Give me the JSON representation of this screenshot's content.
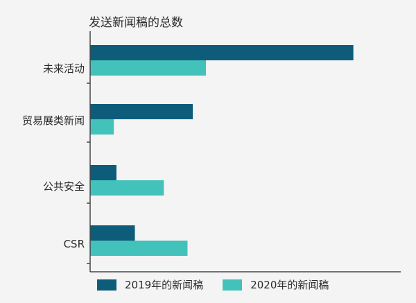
{
  "chart_data": {
    "type": "bar",
    "orientation": "horizontal",
    "title": "发送新闻稿的总数",
    "categories": [
      "未来活动",
      "贸易展类新闻",
      "公共安全",
      "CSR"
    ],
    "series": [
      {
        "name": "2019年的新闻稿",
        "color": "#0d5c7a",
        "values": [
          100,
          39,
          10,
          17
        ]
      },
      {
        "name": "2020年的新闻稿",
        "color": "#43c1bb",
        "values": [
          44,
          9,
          28,
          37
        ]
      }
    ],
    "xlim": [
      0,
      118
    ],
    "grid": false,
    "legend": "bottom"
  }
}
